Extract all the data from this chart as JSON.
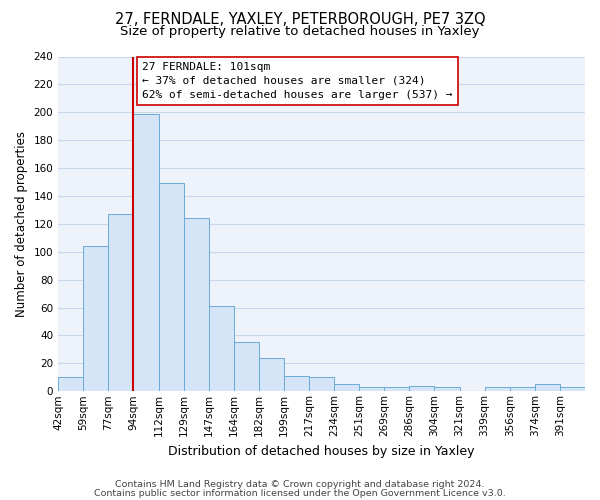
{
  "title": "27, FERNDALE, YAXLEY, PETERBOROUGH, PE7 3ZQ",
  "subtitle": "Size of property relative to detached houses in Yaxley",
  "xlabel": "Distribution of detached houses by size in Yaxley",
  "ylabel": "Number of detached properties",
  "bar_labels": [
    "42sqm",
    "59sqm",
    "77sqm",
    "94sqm",
    "112sqm",
    "129sqm",
    "147sqm",
    "164sqm",
    "182sqm",
    "199sqm",
    "217sqm",
    "234sqm",
    "251sqm",
    "269sqm",
    "286sqm",
    "304sqm",
    "321sqm",
    "339sqm",
    "356sqm",
    "374sqm",
    "391sqm"
  ],
  "bar_values": [
    10,
    104,
    127,
    199,
    149,
    124,
    61,
    35,
    24,
    11,
    10,
    5,
    3,
    3,
    4,
    3,
    0,
    3,
    3,
    5,
    3
  ],
  "bar_color": "#d6e4f7",
  "bar_edge_color": "#6aaad4",
  "vline_x": 3,
  "vline_color": "#cc0000",
  "ylim": [
    0,
    240
  ],
  "yticks": [
    0,
    20,
    40,
    60,
    80,
    100,
    120,
    140,
    160,
    180,
    200,
    220,
    240
  ],
  "annotation_title": "27 FERNDALE: 101sqm",
  "annotation_line1": "← 37% of detached houses are smaller (324)",
  "annotation_line2": "62% of semi-detached houses are larger (537) →",
  "annotation_box_color": "#ffffff",
  "annotation_box_edge": "#cc0000",
  "footnote1": "Contains HM Land Registry data © Crown copyright and database right 2024.",
  "footnote2": "Contains public sector information licensed under the Open Government Licence v3.0.",
  "bg_color": "#ffffff",
  "plot_bg_color": "#eef3fb",
  "grid_color": "#c8d8ea",
  "title_fontsize": 10.5,
  "subtitle_fontsize": 9.5,
  "xlabel_fontsize": 9,
  "ylabel_fontsize": 8.5,
  "tick_fontsize": 7.5,
  "footnote_fontsize": 6.8,
  "annotation_fontsize": 8
}
